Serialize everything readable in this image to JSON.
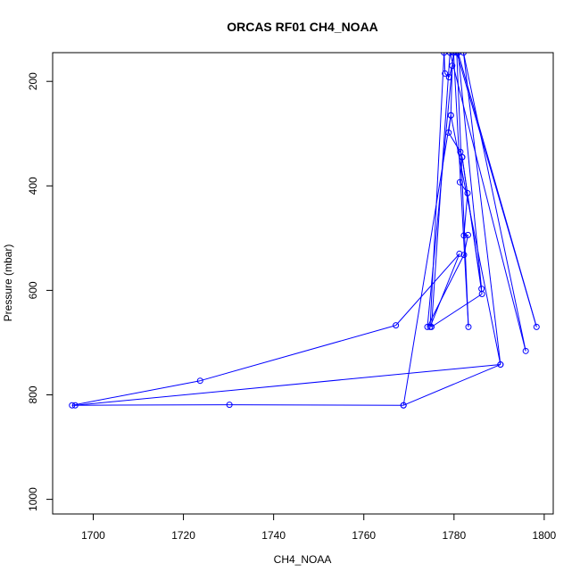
{
  "chart_data": {
    "type": "line",
    "title": "ORCAS RF01 CH4_NOAA",
    "xlabel": "CH4_NOAA",
    "ylabel": "Pressure (mbar)",
    "xlim": [
      1691,
      1802
    ],
    "ylim": [
      1028,
      145
    ],
    "y_reversed": true,
    "grid": false,
    "legend": "none",
    "xticks": [
      1700,
      1720,
      1740,
      1760,
      1780,
      1800
    ],
    "yticks": [
      200,
      400,
      600,
      800,
      1000
    ],
    "series": [
      {
        "color": "#0000ff",
        "marker": "open-circle",
        "points": [
          [
            1768.8,
            820
          ],
          [
            1730.2,
            819
          ],
          [
            1695.3,
            820
          ],
          [
            1723.7,
            773
          ],
          [
            1767.1,
            667
          ],
          [
            1781.2,
            530
          ],
          [
            1774.7,
            670
          ],
          [
            1777.8,
            145
          ],
          [
            1778.0,
            185
          ],
          [
            1778.9,
            192
          ],
          [
            1779.6,
            170
          ],
          [
            1779.3,
            265
          ],
          [
            1778.8,
            298
          ],
          [
            1781.4,
            335
          ],
          [
            1781.8,
            345
          ],
          [
            1781.3,
            393
          ],
          [
            1783.0,
            414
          ],
          [
            1782.2,
            495
          ],
          [
            1783.1,
            494
          ],
          [
            1782.2,
            532
          ],
          [
            1774.1,
            670
          ],
          [
            1779.9,
            145
          ],
          [
            1783.2,
            670
          ],
          [
            1780.6,
            145
          ],
          [
            1798.3,
            670
          ],
          [
            1780.9,
            145
          ],
          [
            1786.1,
            597
          ],
          [
            1781.8,
            345
          ],
          [
            1786.2,
            607
          ],
          [
            1775.0,
            670
          ],
          [
            1779.1,
            145
          ],
          [
            1795.9,
            716
          ],
          [
            1782.1,
            145
          ],
          [
            1790.3,
            742
          ],
          [
            1779.3,
            265
          ],
          [
            1768.8,
            820
          ],
          [
            1790.3,
            742
          ],
          [
            1696.0,
            820
          ]
        ]
      }
    ]
  }
}
